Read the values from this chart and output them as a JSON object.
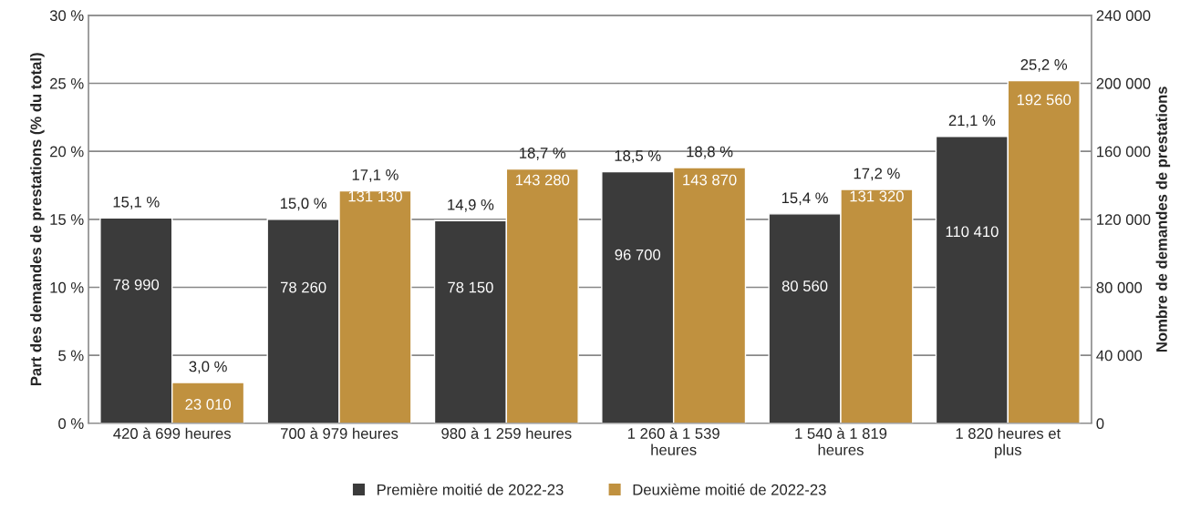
{
  "chart_data": {
    "type": "bar",
    "categories": [
      "420 à 699 heures",
      "700 à 979 heures",
      "980 à 1 259 heures",
      "1 260 à 1 539 heures",
      "1 540 à 1 819 heures",
      "1 820 heures et plus"
    ],
    "series": [
      {
        "name": "Première moitié de 2022-23",
        "color": "#3b3b3b",
        "values": [
          15.1,
          15.0,
          14.9,
          18.5,
          15.4,
          21.1
        ],
        "value_labels": [
          "15,1 %",
          "15,0 %",
          "14,9 %",
          "18,5 %",
          "15,4 %",
          "21,1 %"
        ]
      },
      {
        "name": "Deuxième moitié de 2022-23",
        "color": "#c0913f",
        "values": [
          3.0,
          17.1,
          18.7,
          18.8,
          17.2,
          25.2
        ],
        "value_labels": [
          "3,0 %",
          "17,1 %",
          "18,7 %",
          "18,8 %",
          "17,2 %",
          "25,2 %"
        ]
      }
    ],
    "ylabel": "Part des demandes de prestations (% du total)",
    "y2label": "Nombre de demandes de prestations",
    "ylim": [
      0,
      30
    ],
    "yticks": [
      {
        "value": 0,
        "label": "0 %"
      },
      {
        "value": 5,
        "label": "5 %"
      },
      {
        "value": 10,
        "label": "10 %"
      },
      {
        "value": 15,
        "label": "15 %"
      },
      {
        "value": 20,
        "label": "20 %"
      },
      {
        "value": 25,
        "label": "25 %"
      },
      {
        "value": 30,
        "label": "30 %"
      }
    ],
    "y2lim": [
      0,
      240000
    ],
    "y2ticks": [
      0,
      {
        "value": 40000,
        "label": "40 000"
      },
      {
        "value": 80000,
        "label": "80 000"
      },
      {
        "value": 120000,
        "label": "120 000"
      },
      {
        "value": 160000,
        "label": "160 000"
      },
      {
        "value": 200000,
        "label": "200 000"
      },
      {
        "value": 240000,
        "label": "240 000"
      }
    ],
    "annotations": [
      {
        "text": "78 990",
        "x": "420 à 699 heures",
        "y": 10.1
      },
      {
        "text": "78 260",
        "x": "700 à 979 heures",
        "y": 9.9
      },
      {
        "text": "78 150",
        "x": "980 à 1 259 heures",
        "y": 9.9
      },
      {
        "text": "96 700",
        "x": "1 260 à 1 539 heures",
        "y": 12.3
      },
      {
        "text": "80 560",
        "x": "1 540 à 1 819 heures",
        "y": 10.0
      },
      {
        "text": "110 410",
        "x": "1 820 heures et plus",
        "y": 14.0
      },
      {
        "text": "23 010",
        "x": "420 à 699 heures",
        "y": 1.3
      },
      {
        "text": "131 130",
        "x": "700 à 979 heures",
        "y": 16.6
      },
      {
        "text": "143 280",
        "x": "980 à 1 259 heures",
        "y": 17.8
      },
      {
        "text": "143 870",
        "x": "1 260 à 1 539 heures",
        "y": 17.8
      },
      {
        "text": "131 320",
        "x": "1 540 à 1 819 heures",
        "y": 16.6
      },
      {
        "text": "192 560",
        "x": "1 820 heures et plus",
        "y": 23.7
      }
    ],
    "grid": "y",
    "legend": "bottom"
  }
}
